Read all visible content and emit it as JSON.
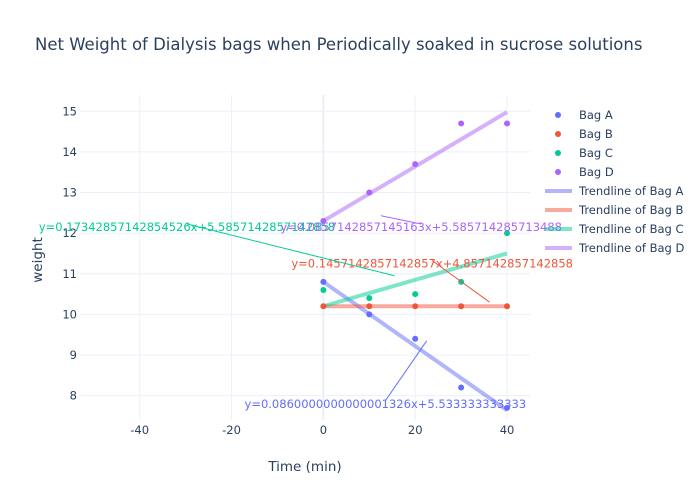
{
  "chart_data": {
    "type": "scatter",
    "title": "Net Weight of Dialysis bags when Periodically soaked in sucrose solutions",
    "xlabel": "Time (min)",
    "ylabel": "weight",
    "xlim": [
      -53,
      45
    ],
    "ylim": [
      7.4,
      15.4
    ],
    "xticks": [
      -40,
      -20,
      0,
      20,
      40
    ],
    "yticks": [
      8,
      9,
      10,
      11,
      12,
      13,
      14,
      15
    ],
    "grid": true,
    "legend_position": "right",
    "x": [
      0,
      10,
      20,
      30,
      40
    ],
    "series": [
      {
        "name": "Bag A",
        "color": "#636efa",
        "values": [
          10.8,
          10.0,
          9.4,
          8.2,
          7.7
        ]
      },
      {
        "name": "Bag B",
        "color": "#ef553b",
        "values": [
          10.2,
          10.2,
          10.2,
          10.2,
          10.2
        ]
      },
      {
        "name": "Bag C",
        "color": "#00cc96",
        "values": [
          10.6,
          10.4,
          10.5,
          10.8,
          12.0
        ]
      },
      {
        "name": "Bag D",
        "color": "#ab63fa",
        "values": [
          12.3,
          13.0,
          13.7,
          14.7,
          14.7
        ]
      }
    ],
    "trendlines": [
      {
        "name": "Trendline of Bag A",
        "color": "#636efa",
        "x": [
          0,
          40
        ],
        "y": [
          10.8,
          7.64
        ]
      },
      {
        "name": "Trendline of Bag B",
        "color": "#ef553b",
        "x": [
          0,
          40
        ],
        "y": [
          10.2,
          10.2
        ]
      },
      {
        "name": "Trendline of Bag C",
        "color": "#00cc96",
        "x": [
          0,
          40
        ],
        "y": [
          10.2,
          11.5
        ]
      },
      {
        "name": "Trendline of Bag D",
        "color": "#ab63fa",
        "x": [
          0,
          40
        ],
        "y": [
          12.3,
          14.98
        ]
      }
    ],
    "annotations": [
      {
        "text": "y=0.0860000000000001326x+5.533333333333",
        "color": "#636efa",
        "x": 13.5,
        "y": 7.8,
        "ax": 22.5,
        "ay": 9.35
      },
      {
        "text": "y=0.1457142857142857x+4.857142857142858",
        "color": "#ef553b",
        "x": 23.7,
        "y": 11.25,
        "ax": 36.2,
        "ay": 10.3
      },
      {
        "text": "y=0.17342857142854526x+5.5857142857142858",
        "color": "#00cc96",
        "x": -29.7,
        "y": 12.15,
        "ax": 15.5,
        "ay": 10.95
      },
      {
        "text": "y=0.0857142857145163x+5.585714285713488",
        "color": "#ab63fa",
        "x": 21.3,
        "y": 12.15,
        "ax": 12.5,
        "ay": 12.43
      }
    ]
  }
}
